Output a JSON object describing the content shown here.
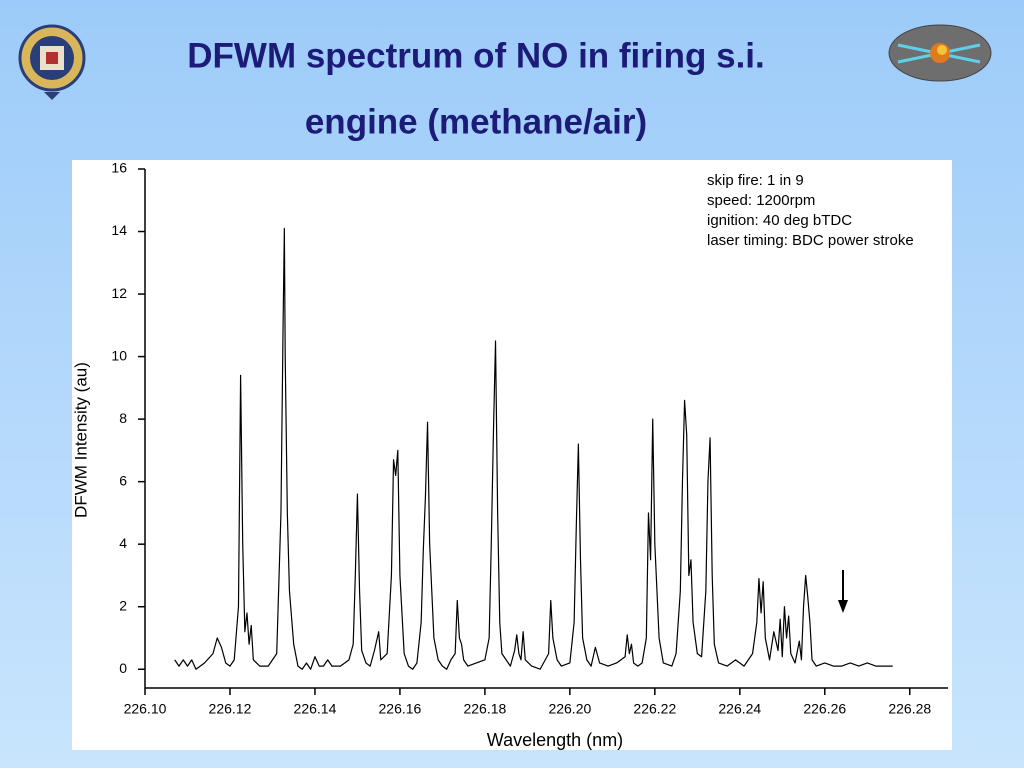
{
  "chart_data": {
    "type": "line",
    "title": [
      "DFWM spectrum of NO in firing s.i.",
      "engine (methane/air)"
    ],
    "x_label": "Wavelength (nm)",
    "y_label": "DFWM Intensity (au)",
    "annotations": [
      "skip fire: 1 in 9",
      "speed: 1200rpm",
      "ignition: 40 deg bTDC",
      "laser timing: BDC power stroke"
    ],
    "color": "#000000",
    "xlim": [
      226.1,
      226.289
    ],
    "ylim": [
      -0.6,
      16
    ],
    "xticks": [
      {
        "value": 226.1,
        "label": "226.10"
      },
      226.12,
      226.14,
      226.16,
      226.18,
      {
        "value": 226.2,
        "label": "226.20"
      },
      226.22,
      226.24,
      226.26,
      226.28
    ],
    "yticks": [
      0,
      2,
      4,
      6,
      8,
      10,
      12,
      14,
      16
    ],
    "x": [
      226.107,
      226.108,
      226.109,
      226.11,
      226.111,
      226.112,
      226.114,
      226.116,
      226.117,
      226.118,
      226.119,
      226.12,
      226.121,
      226.122,
      226.1225,
      226.123,
      226.1235,
      226.124,
      226.1245,
      226.125,
      226.1255,
      226.127,
      226.129,
      226.131,
      226.132,
      226.1325,
      226.1328,
      226.133,
      226.1335,
      226.134,
      226.135,
      226.136,
      226.137,
      226.138,
      226.139,
      226.14,
      226.141,
      226.142,
      226.143,
      226.144,
      226.146,
      226.148,
      226.149,
      226.1495,
      226.15,
      226.1505,
      226.151,
      226.152,
      226.153,
      226.154,
      226.155,
      226.1555,
      226.157,
      226.158,
      226.1585,
      226.159,
      226.1595,
      226.16,
      226.161,
      226.162,
      226.163,
      226.164,
      226.165,
      226.1655,
      226.166,
      226.1665,
      226.167,
      226.168,
      226.169,
      226.17,
      226.171,
      226.172,
      226.173,
      226.1735,
      226.174,
      226.1745,
      226.175,
      226.176,
      226.178,
      226.18,
      226.181,
      226.1815,
      226.182,
      226.1825,
      226.183,
      226.1835,
      226.184,
      226.185,
      226.186,
      226.187,
      226.1875,
      226.188,
      226.1885,
      226.189,
      226.1895,
      226.191,
      226.193,
      226.195,
      226.1955,
      226.196,
      226.197,
      226.198,
      226.2,
      226.201,
      226.2015,
      226.202,
      226.2025,
      226.203,
      226.204,
      226.205,
      226.206,
      226.207,
      226.209,
      226.211,
      226.213,
      226.2135,
      226.214,
      226.2145,
      226.215,
      226.216,
      226.217,
      226.218,
      226.2185,
      226.219,
      226.2195,
      226.22,
      226.221,
      226.222,
      226.224,
      226.225,
      226.226,
      226.2265,
      226.227,
      226.2275,
      226.228,
      226.2285,
      226.229,
      226.23,
      226.231,
      226.232,
      226.2325,
      226.233,
      226.2335,
      226.234,
      226.235,
      226.237,
      226.239,
      226.241,
      226.243,
      226.244,
      226.2445,
      226.245,
      226.2455,
      226.246,
      226.247,
      226.248,
      226.249,
      226.2495,
      226.25,
      226.2505,
      226.251,
      226.2515,
      226.252,
      226.253,
      226.254,
      226.2545,
      226.255,
      226.2555,
      226.256,
      226.2565,
      226.257,
      226.258,
      226.26,
      226.262,
      226.264,
      226.266,
      226.268,
      226.27,
      226.272,
      226.274,
      226.276
    ],
    "values": [
      0.3,
      0.1,
      0.3,
      0.1,
      0.3,
      0.0,
      0.2,
      0.5,
      1.0,
      0.7,
      0.2,
      0.1,
      0.3,
      2.0,
      9.4,
      4.0,
      1.2,
      1.8,
      0.8,
      1.4,
      0.3,
      0.1,
      0.1,
      0.5,
      5.0,
      11.0,
      14.1,
      10.0,
      5.0,
      2.5,
      0.8,
      0.1,
      0.0,
      0.2,
      0.0,
      0.4,
      0.1,
      0.1,
      0.3,
      0.1,
      0.1,
      0.3,
      0.8,
      3.0,
      5.6,
      2.5,
      0.6,
      0.2,
      0.1,
      0.6,
      1.2,
      0.3,
      0.5,
      3.0,
      6.7,
      6.2,
      7.0,
      3.0,
      0.5,
      0.1,
      0.0,
      0.2,
      1.5,
      3.8,
      5.5,
      7.9,
      4.0,
      1.0,
      0.3,
      0.1,
      0.0,
      0.3,
      0.5,
      2.2,
      1.0,
      0.8,
      0.3,
      0.1,
      0.2,
      0.3,
      1.0,
      4.0,
      7.5,
      10.5,
      5.0,
      1.5,
      0.5,
      0.3,
      0.1,
      0.6,
      1.1,
      0.5,
      0.3,
      1.2,
      0.3,
      0.1,
      0.0,
      0.5,
      2.2,
      1.0,
      0.3,
      0.1,
      0.2,
      1.5,
      4.5,
      7.2,
      3.5,
      1.0,
      0.3,
      0.1,
      0.7,
      0.2,
      0.1,
      0.2,
      0.4,
      1.1,
      0.5,
      0.8,
      0.2,
      0.1,
      0.2,
      1.0,
      5.0,
      3.5,
      8.0,
      4.0,
      1.0,
      0.2,
      0.1,
      0.5,
      2.5,
      6.0,
      8.6,
      7.5,
      3.0,
      3.5,
      1.5,
      0.5,
      0.4,
      2.5,
      6.0,
      7.4,
      3.0,
      0.8,
      0.2,
      0.1,
      0.3,
      0.1,
      0.5,
      1.5,
      2.9,
      1.8,
      2.8,
      1.0,
      0.3,
      1.2,
      0.6,
      1.6,
      0.4,
      2.0,
      1.0,
      1.7,
      0.5,
      0.2,
      0.9,
      0.3,
      2.0,
      3.0,
      2.3,
      1.5,
      0.3,
      0.1,
      0.2,
      0.1,
      0.1,
      0.2,
      0.1,
      0.2,
      0.1,
      0.1,
      0.1
    ]
  }
}
